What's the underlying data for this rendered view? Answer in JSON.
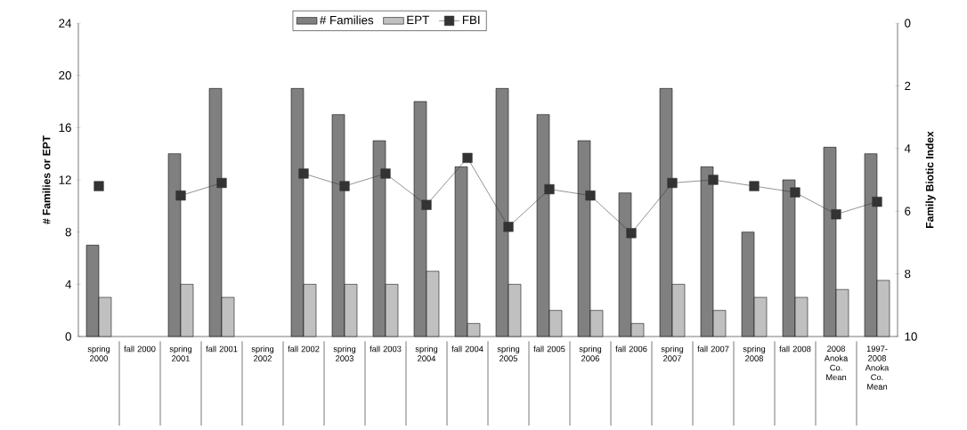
{
  "chart_data": {
    "type": "bar",
    "categories": [
      "spring 2000",
      "fall 2000",
      "spring 2001",
      "fall 2001",
      "spring 2002",
      "fall 2002",
      "spring 2003",
      "fall 2003",
      "spring 2004",
      "fall 2004",
      "spring 2005",
      "fall 2005",
      "spring 2006",
      "fall 2006",
      "spring 2007",
      "fall 2007",
      "spring 2008",
      "fall 2008",
      "2008 Anoka Co. Mean",
      "1997-2008 Anoka Co. Mean"
    ],
    "series": [
      {
        "name": "# Families",
        "color": "#808080",
        "values": [
          7,
          null,
          14,
          19,
          null,
          19,
          17,
          15,
          18,
          13,
          19,
          17,
          15,
          11,
          19,
          13,
          8,
          12,
          14.5,
          14
        ]
      },
      {
        "name": "EPT",
        "color": "#c0c0c0",
        "values": [
          3,
          null,
          4,
          3,
          null,
          4,
          4,
          4,
          5,
          1,
          4,
          2,
          2,
          1,
          4,
          2,
          3,
          3,
          3.6,
          4.3
        ]
      },
      {
        "name": "FBI",
        "type": "line",
        "axis": "y2",
        "color": "#333333",
        "values": [
          5.2,
          null,
          5.5,
          5.1,
          null,
          4.8,
          5.2,
          4.8,
          5.8,
          4.3,
          6.5,
          5.3,
          5.5,
          6.7,
          5.1,
          5.0,
          5.2,
          5.4,
          6.1,
          5.7
        ]
      }
    ],
    "ylabel": "# Families or EPT",
    "y2label": "Family Biotic Index",
    "ylim": [
      0,
      24
    ],
    "yticks": [
      0,
      4,
      8,
      12,
      16,
      20,
      24
    ],
    "y2lim": [
      10,
      0
    ],
    "y2ticks": [
      0,
      2,
      4,
      6,
      8,
      10
    ],
    "legend": "top",
    "marker": "square",
    "grid": false
  }
}
